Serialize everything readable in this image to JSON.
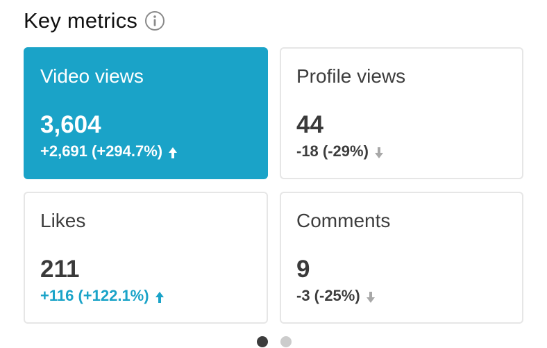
{
  "header": {
    "title": "Key metrics",
    "info_icon": "info-icon"
  },
  "colors": {
    "accent": "#1aa3c8",
    "text_dark": "#3a3a3a",
    "down_arrow": "#a8a8a8",
    "dot_active": "#3c3c3c",
    "dot_inactive": "#cccccc"
  },
  "metrics": [
    {
      "label": "Video views",
      "value": "3,604",
      "change": "+2,691 (+294.7%)",
      "direction": "up",
      "selected": true
    },
    {
      "label": "Profile views",
      "value": "44",
      "change": "-18 (-29%)",
      "direction": "down",
      "selected": false
    },
    {
      "label": "Likes",
      "value": "211",
      "change": "+116 (+122.1%)",
      "direction": "up",
      "selected": false
    },
    {
      "label": "Comments",
      "value": "9",
      "change": "-3 (-25%)",
      "direction": "down",
      "selected": false
    }
  ],
  "pagination": {
    "current": 1,
    "total": 2
  }
}
